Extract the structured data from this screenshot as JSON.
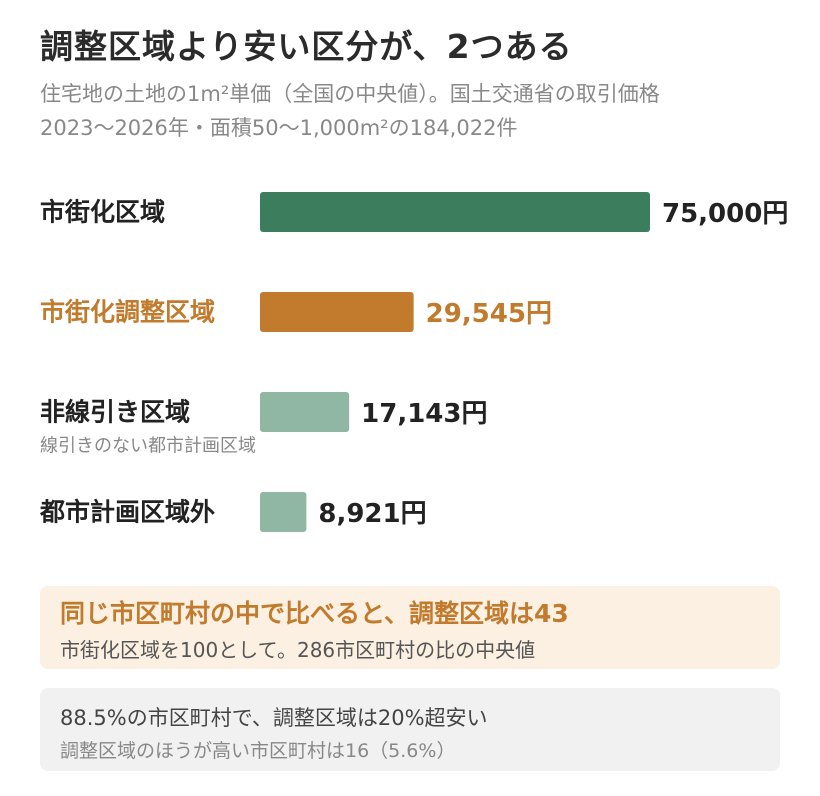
{
  "header": {
    "title": "調整区域より安い区分が、2つある",
    "subtitle_line1": "住宅地の土地の1m²単価（全国の中央値）。国土交通省の取引価格",
    "subtitle_line2": "2023〜2026年・面積50〜1,000m²の184,022件"
  },
  "chart_data": {
    "type": "bar",
    "orientation": "horizontal",
    "categories": [
      "市街化区域",
      "市街化調整区域",
      "非線引き区域",
      "都市計画区域外"
    ],
    "category_sublabels": [
      "",
      "",
      "線引きのない都市計画区域",
      ""
    ],
    "values": [
      75000,
      29545,
      17143,
      8921
    ],
    "value_labels": [
      "75,000円",
      "29,545円",
      "17,143円",
      "8,921円"
    ],
    "colors": [
      "#3b7d5d",
      "#c27a2c",
      "#8fb7a3",
      "#8fb7a3"
    ],
    "label_colors": [
      "#222222",
      "#c27a2c",
      "#222222",
      "#222222"
    ],
    "xlim": [
      0,
      75000
    ],
    "grid": false
  },
  "callouts": [
    {
      "main": "同じ市区町村の中で比べると、調整区域は43",
      "sub": "市街化区域を100として。286市区町村の比の中央値"
    },
    {
      "main": "88.5%の市区町村で、調整区域は20%超安い",
      "sub": "調整区域のほうが高い市区町村は16（5.6%）"
    }
  ]
}
